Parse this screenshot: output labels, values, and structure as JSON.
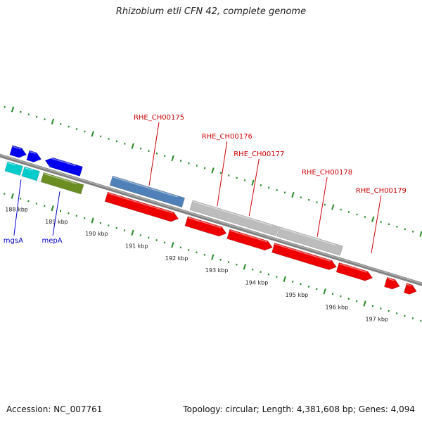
{
  "header": {
    "title": "Rhizobium etli CFN 42, complete genome"
  },
  "footer": {
    "accession": "Accession: NC_007761",
    "summary": "Topology: circular; Length: 4,381,608 bp; Genes: 4,094"
  },
  "colors": {
    "backbone": "#808080",
    "tick_dots": "#228b22",
    "blue_gene": "#0000ee",
    "cyan_gene": "#00cccc",
    "olive_gene": "#6b8e23",
    "steel_gene": "#4f81b8",
    "red_gene": "#ee0000",
    "gray_gene": "#bcbcbc",
    "locus_label": "#cc0000",
    "gene_label": "#0000cc"
  },
  "scale": {
    "unit": "kbp",
    "ticks": [
      {
        "kbp": 188,
        "label": "188 kbp"
      },
      {
        "kbp": 189,
        "label": "189 kbp"
      },
      {
        "kbp": 190,
        "label": "190 kbp"
      },
      {
        "kbp": 191,
        "label": "191 kbp"
      },
      {
        "kbp": 192,
        "label": "192 kbp"
      },
      {
        "kbp": 193,
        "label": "193 kbp"
      },
      {
        "kbp": 194,
        "label": "194 kbp"
      },
      {
        "kbp": 195,
        "label": "195 kbp"
      },
      {
        "kbp": 196,
        "label": "196 kbp"
      },
      {
        "kbp": 197,
        "label": "197 kbp"
      }
    ]
  },
  "features": {
    "outer_track": [
      {
        "start": 187.55,
        "end": 187.93,
        "color": "blue_gene",
        "strand": "+"
      },
      {
        "start": 187.97,
        "end": 188.3,
        "color": "blue_gene",
        "strand": "+"
      },
      {
        "start": 188.4,
        "end": 189.3,
        "color": "blue_gene",
        "strand": "-"
      },
      {
        "start": 190.05,
        "end": 191.85,
        "color": "steel_gene",
        "strand": "none"
      },
      {
        "start": 192.05,
        "end": 194.2,
        "color": "gray_gene",
        "strand": "none"
      },
      {
        "start": 194.22,
        "end": 195.8,
        "color": "gray_gene",
        "strand": "none"
      }
    ],
    "inner_track": [
      {
        "start": 187.55,
        "end": 187.93,
        "color": "cyan_gene",
        "strand": "none"
      },
      {
        "start": 187.97,
        "end": 188.35,
        "color": "cyan_gene",
        "strand": "none"
      },
      {
        "start": 188.45,
        "end": 189.45,
        "color": "olive_gene",
        "strand": "none"
      },
      {
        "start": 190.05,
        "end": 191.85,
        "color": "red_gene",
        "strand": "+"
      },
      {
        "start": 192.05,
        "end": 193.05,
        "color": "red_gene",
        "strand": "+"
      },
      {
        "start": 193.1,
        "end": 194.2,
        "color": "red_gene",
        "strand": "+"
      },
      {
        "start": 194.22,
        "end": 195.8,
        "color": "red_gene",
        "strand": "+"
      },
      {
        "start": 195.83,
        "end": 196.7,
        "color": "red_gene",
        "strand": "+"
      },
      {
        "start": 197.03,
        "end": 197.38,
        "color": "red_gene",
        "strand": "+"
      },
      {
        "start": 197.52,
        "end": 197.8,
        "color": "red_gene",
        "strand": "+"
      }
    ]
  },
  "labels": [
    {
      "text": "RHE_CH00175",
      "kbp": 190.95,
      "side": "outer",
      "color": "locus_label",
      "level": 1
    },
    {
      "text": "RHE_CH00176",
      "kbp": 192.65,
      "side": "outer",
      "color": "locus_label",
      "level": 2
    },
    {
      "text": "RHE_CH00177",
      "kbp": 193.45,
      "side": "outer",
      "color": "locus_label",
      "level": 3
    },
    {
      "text": "RHE_CH00178",
      "kbp": 195.15,
      "side": "outer",
      "color": "locus_label",
      "level": 4
    },
    {
      "text": "RHE_CH00179",
      "kbp": 196.5,
      "side": "outer",
      "color": "locus_label",
      "level": 5
    },
    {
      "text": "mgsA",
      "kbp": 187.98,
      "side": "inner",
      "color": "gene_label",
      "level": 1
    },
    {
      "text": "mepA",
      "kbp": 188.95,
      "side": "inner",
      "color": "gene_label",
      "level": 1
    }
  ]
}
